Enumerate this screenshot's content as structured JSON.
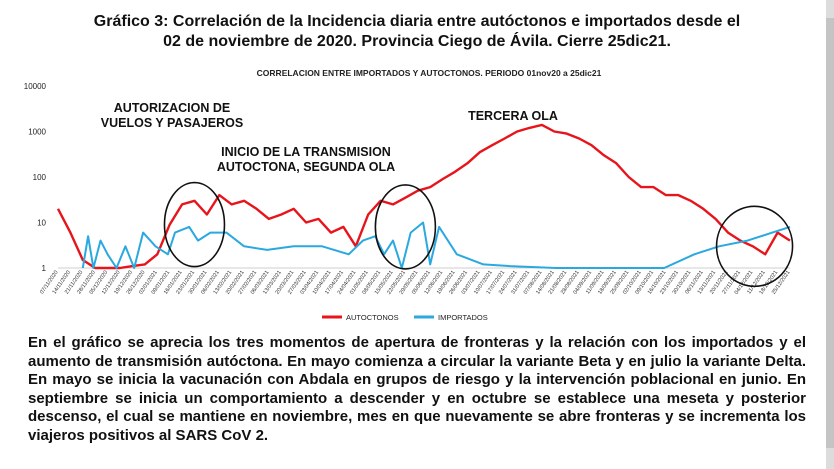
{
  "page": {
    "title_line1": "Gráfico 3: Correlación de la Incidencia diaria entre autóctonos e importados desde el",
    "title_line2": "02 de noviembre de 2020. Provincia Ciego de Ávila. Cierre 25dic21.",
    "paragraph": "En el gráfico se aprecia los tres momentos de apertura de fronteras y la relación con los importados y el aumento de transmisión autóctona. En mayo comienza a circular la variante Beta y en julio la variante Delta. En mayo se inicia la vacunación con Abdala en grupos de riesgo y la intervención poblacional en junio. En septiembre se inicia un comportamiento a descender y en octubre se establece una meseta y posterior descenso, el cual se mantiene en noviembre, mes en que nuevamente se abre fronteras y se incrementa los viajeros positivos al SARS CoV 2."
  },
  "chart_data": {
    "type": "line",
    "title": "CORRELACION ENTRE IMPORTADOS Y AUTOCTONOS. PERIODO 01nov20 a 25dic21",
    "yscale": "log",
    "ylim": [
      1,
      10000
    ],
    "yticks": [
      1,
      10,
      100,
      1000,
      10000
    ],
    "xrange": [
      "2020-11-07",
      "2021-12-25"
    ],
    "xticks": [
      "07/11/2020",
      "14/11/2020",
      "21/11/2020",
      "28/11/2020",
      "05/12/2020",
      "12/12/2020",
      "19/12/2020",
      "26/12/2020",
      "02/01/2021",
      "09/01/2021",
      "16/01/2021",
      "23/01/2021",
      "30/01/2021",
      "06/02/2021",
      "13/02/2021",
      "20/02/2021",
      "27/02/2021",
      "06/03/2021",
      "13/03/2021",
      "20/03/2021",
      "27/03/2021",
      "03/04/2021",
      "10/04/2021",
      "17/04/2021",
      "24/04/2021",
      "01/05/2021",
      "08/05/2021",
      "15/05/2021",
      "22/05/2021",
      "29/05/2021",
      "05/06/2021",
      "12/06/2021",
      "19/06/2021",
      "26/06/2021",
      "03/07/2021",
      "10/07/2021",
      "17/07/2021",
      "24/07/2021",
      "31/07/2021",
      "07/08/2021",
      "14/08/2021",
      "21/08/2021",
      "28/08/2021",
      "04/09/2021",
      "11/09/2021",
      "18/09/2021",
      "25/09/2021",
      "02/10/2021",
      "09/10/2021",
      "16/10/2021",
      "23/10/2021",
      "30/10/2021",
      "06/11/2021",
      "13/11/2021",
      "20/11/2021",
      "27/11/2021",
      "04/12/2021",
      "11/12/2021",
      "18/12/2021",
      "25/12/2021"
    ],
    "grid": false,
    "legend_position": "bottom-center",
    "series": [
      {
        "name": "AUTOCTONOS",
        "color": "#e8141b",
        "values": [
          {
            "x": "2020-11-07",
            "y": 20
          },
          {
            "x": "2020-11-14",
            "y": 6
          },
          {
            "x": "2020-11-21",
            "y": 1.5
          },
          {
            "x": "2020-11-28",
            "y": 1
          },
          {
            "x": "2020-12-05",
            "y": 1
          },
          {
            "x": "2020-12-12",
            "y": 1
          },
          {
            "x": "2020-12-19",
            "y": 1.1
          },
          {
            "x": "2020-12-26",
            "y": 1.2
          },
          {
            "x": "2021-01-02",
            "y": 2
          },
          {
            "x": "2021-01-09",
            "y": 9
          },
          {
            "x": "2021-01-16",
            "y": 25
          },
          {
            "x": "2021-01-23",
            "y": 30
          },
          {
            "x": "2021-01-30",
            "y": 15
          },
          {
            "x": "2021-02-06",
            "y": 40
          },
          {
            "x": "2021-02-13",
            "y": 25
          },
          {
            "x": "2021-02-20",
            "y": 30
          },
          {
            "x": "2021-02-27",
            "y": 20
          },
          {
            "x": "2021-03-06",
            "y": 12
          },
          {
            "x": "2021-03-13",
            "y": 15
          },
          {
            "x": "2021-03-20",
            "y": 20
          },
          {
            "x": "2021-03-27",
            "y": 10
          },
          {
            "x": "2021-04-03",
            "y": 12
          },
          {
            "x": "2021-04-10",
            "y": 6
          },
          {
            "x": "2021-04-17",
            "y": 8
          },
          {
            "x": "2021-04-24",
            "y": 3
          },
          {
            "x": "2021-05-01",
            "y": 15
          },
          {
            "x": "2021-05-08",
            "y": 30
          },
          {
            "x": "2021-05-15",
            "y": 25
          },
          {
            "x": "2021-05-22",
            "y": 35
          },
          {
            "x": "2021-05-29",
            "y": 50
          },
          {
            "x": "2021-06-05",
            "y": 60
          },
          {
            "x": "2021-06-12",
            "y": 90
          },
          {
            "x": "2021-06-19",
            "y": 130
          },
          {
            "x": "2021-06-26",
            "y": 200
          },
          {
            "x": "2021-07-03",
            "y": 350
          },
          {
            "x": "2021-07-10",
            "y": 500
          },
          {
            "x": "2021-07-17",
            "y": 700
          },
          {
            "x": "2021-07-24",
            "y": 1000
          },
          {
            "x": "2021-07-31",
            "y": 1200
          },
          {
            "x": "2021-08-07",
            "y": 1400
          },
          {
            "x": "2021-08-14",
            "y": 1000
          },
          {
            "x": "2021-08-21",
            "y": 900
          },
          {
            "x": "2021-08-28",
            "y": 700
          },
          {
            "x": "2021-09-04",
            "y": 500
          },
          {
            "x": "2021-09-11",
            "y": 300
          },
          {
            "x": "2021-09-18",
            "y": 200
          },
          {
            "x": "2021-09-25",
            "y": 100
          },
          {
            "x": "2021-10-02",
            "y": 60
          },
          {
            "x": "2021-10-09",
            "y": 60
          },
          {
            "x": "2021-10-16",
            "y": 40
          },
          {
            "x": "2021-10-23",
            "y": 40
          },
          {
            "x": "2021-10-30",
            "y": 30
          },
          {
            "x": "2021-11-06",
            "y": 20
          },
          {
            "x": "2021-11-13",
            "y": 12
          },
          {
            "x": "2021-11-20",
            "y": 6
          },
          {
            "x": "2021-11-27",
            "y": 4
          },
          {
            "x": "2021-12-04",
            "y": 3
          },
          {
            "x": "2021-12-11",
            "y": 2
          },
          {
            "x": "2021-12-18",
            "y": 6
          },
          {
            "x": "2021-12-25",
            "y": 4
          }
        ]
      },
      {
        "name": "IMPORTADOS",
        "color": "#29a9e0",
        "values": [
          {
            "x": "2020-11-21",
            "y": 1
          },
          {
            "x": "2020-11-24",
            "y": 5
          },
          {
            "x": "2020-11-27",
            "y": 1
          },
          {
            "x": "2020-12-01",
            "y": 4
          },
          {
            "x": "2020-12-05",
            "y": 2
          },
          {
            "x": "2020-12-10",
            "y": 1
          },
          {
            "x": "2020-12-15",
            "y": 3
          },
          {
            "x": "2020-12-20",
            "y": 1
          },
          {
            "x": "2020-12-25",
            "y": 6
          },
          {
            "x": "2021-01-01",
            "y": 3
          },
          {
            "x": "2021-01-08",
            "y": 2
          },
          {
            "x": "2021-01-12",
            "y": 6
          },
          {
            "x": "2021-01-20",
            "y": 8
          },
          {
            "x": "2021-01-25",
            "y": 4
          },
          {
            "x": "2021-02-01",
            "y": 6
          },
          {
            "x": "2021-02-10",
            "y": 6
          },
          {
            "x": "2021-02-20",
            "y": 3
          },
          {
            "x": "2021-03-05",
            "y": 2.5
          },
          {
            "x": "2021-03-20",
            "y": 3
          },
          {
            "x": "2021-04-05",
            "y": 3
          },
          {
            "x": "2021-04-20",
            "y": 2
          },
          {
            "x": "2021-04-28",
            "y": 4
          },
          {
            "x": "2021-05-05",
            "y": 5
          },
          {
            "x": "2021-05-10",
            "y": 2
          },
          {
            "x": "2021-05-15",
            "y": 4
          },
          {
            "x": "2021-05-20",
            "y": 1
          },
          {
            "x": "2021-05-25",
            "y": 6
          },
          {
            "x": "2021-06-01",
            "y": 10
          },
          {
            "x": "2021-06-05",
            "y": 1.2
          },
          {
            "x": "2021-06-10",
            "y": 8
          },
          {
            "x": "2021-06-20",
            "y": 2
          },
          {
            "x": "2021-07-05",
            "y": 1.2
          },
          {
            "x": "2021-07-20",
            "y": 1.1
          },
          {
            "x": "2021-08-15",
            "y": 1
          },
          {
            "x": "2021-09-15",
            "y": 1
          },
          {
            "x": "2021-10-15",
            "y": 1
          },
          {
            "x": "2021-11-01",
            "y": 2
          },
          {
            "x": "2021-11-15",
            "y": 3
          },
          {
            "x": "2021-12-01",
            "y": 4
          },
          {
            "x": "2021-12-15",
            "y": 6
          },
          {
            "x": "2021-12-25",
            "y": 8
          }
        ]
      }
    ],
    "annotations": [
      {
        "text": "AUTORIZACION DE VUELOS Y PASAJEROS",
        "lines": [
          "AUTORIZACION DE",
          "VUELOS Y PASAJEROS"
        ]
      },
      {
        "text": "INICIO DE LA TRANSMISION AUTOCTONA, SEGUNDA OLA",
        "lines": [
          "INICIO DE LA TRANSMISION",
          "AUTOCTONA, SEGUNDA OLA"
        ]
      },
      {
        "text": "TERCERA OLA",
        "lines": [
          "TERCERA OLA"
        ]
      }
    ]
  }
}
